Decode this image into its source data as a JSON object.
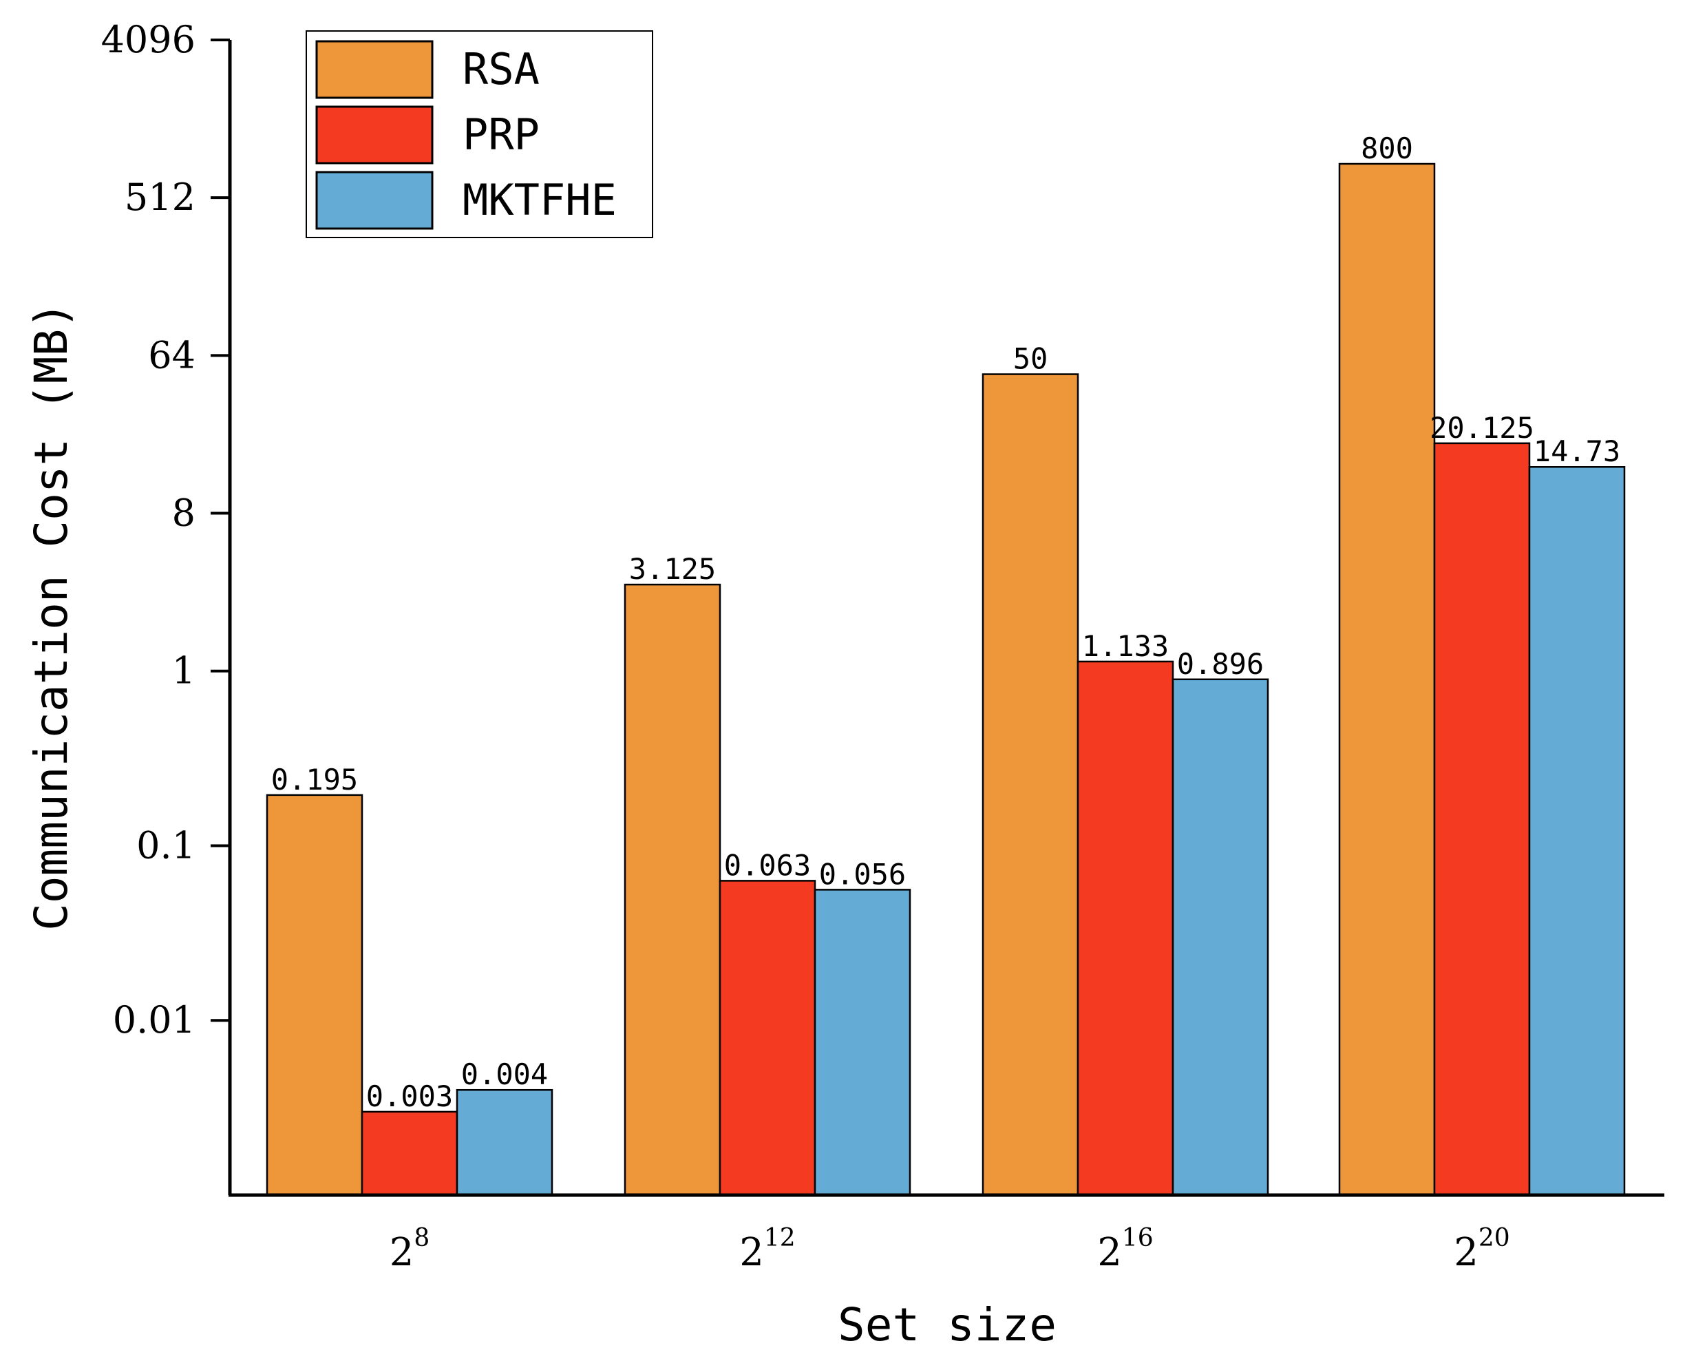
{
  "chart_data": {
    "type": "bar",
    "title": "",
    "xlabel": "Set size",
    "ylabel": "Communication Cost (MB)",
    "y_scale": "log",
    "ylim": [
      0.001,
      4096
    ],
    "y_ticks": [
      {
        "value": 4096,
        "label": "4096"
      },
      {
        "value": 512,
        "label": "512"
      },
      {
        "value": 64,
        "label": "64"
      },
      {
        "value": 8,
        "label": "8"
      },
      {
        "value": 1,
        "label": "1"
      },
      {
        "value": 0.1,
        "label": "0.1"
      },
      {
        "value": 0.01,
        "label": "0.01"
      }
    ],
    "categories": [
      {
        "base": "2",
        "exp": "8"
      },
      {
        "base": "2",
        "exp": "12"
      },
      {
        "base": "2",
        "exp": "16"
      },
      {
        "base": "2",
        "exp": "20"
      }
    ],
    "series": [
      {
        "name": "RSA",
        "color": "#EE963A",
        "values": [
          0.195,
          3.125,
          50,
          800
        ],
        "labels": [
          "0.195",
          "3.125",
          "50",
          "800"
        ]
      },
      {
        "name": "PRP",
        "color": "#F43B22",
        "values": [
          0.003,
          0.063,
          1.133,
          20.125
        ],
        "labels": [
          "0.003",
          "0.063",
          "1.133",
          "20.125"
        ]
      },
      {
        "name": "MKTFHE",
        "color": "#64ACD5",
        "values": [
          0.004,
          0.056,
          0.896,
          14.73
        ],
        "labels": [
          "0.004",
          "0.056",
          "0.896",
          "14.73"
        ]
      }
    ],
    "legend": {
      "position": "top-left",
      "entries": [
        "RSA",
        "PRP",
        "MKTFHE"
      ]
    }
  }
}
